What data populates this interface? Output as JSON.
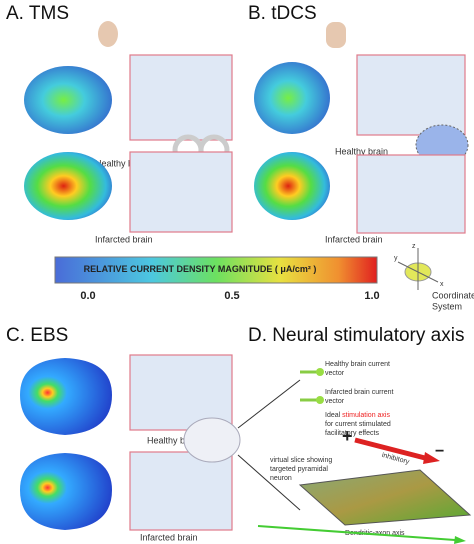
{
  "panels": [
    {
      "label": "A. TMS",
      "captions": [
        "Healthy brain",
        "Infarcted brain"
      ]
    },
    {
      "label": "B. tDCS",
      "captions": [
        "Healthy brain",
        "Infarcted brain"
      ]
    },
    {
      "label": "C. EBS",
      "captions": [
        "Healthy brain",
        "Infarcted brain"
      ]
    },
    {
      "label": "D. Neural stimulatory axis"
    }
  ],
  "colorbar": {
    "title": "RELATIVE CURRENT DENSITY MAGNITUDE",
    "unit": "( μA/cm² )",
    "ticks": [
      "0.0",
      "0.5",
      "1.0"
    ]
  },
  "coordinate_system": {
    "axes": [
      "z",
      "x",
      "y"
    ],
    "lines": [
      "Coordinate",
      "System"
    ]
  },
  "neural_axis": {
    "healthy_vector": [
      "Healthy brain current",
      "vector"
    ],
    "infarcted_vector": [
      "Infarcted brain current",
      "vector"
    ],
    "ideal": [
      "Ideal ",
      "stimulation axis",
      "for current stimulated",
      "facilitatory effects"
    ],
    "plus": "+",
    "minus": "−",
    "inhibitory": "inhibitory",
    "slice": [
      "virtual slice showing",
      "targeted pyramidal",
      "neuron"
    ],
    "dendritic": "Dendritic-axon axis"
  }
}
